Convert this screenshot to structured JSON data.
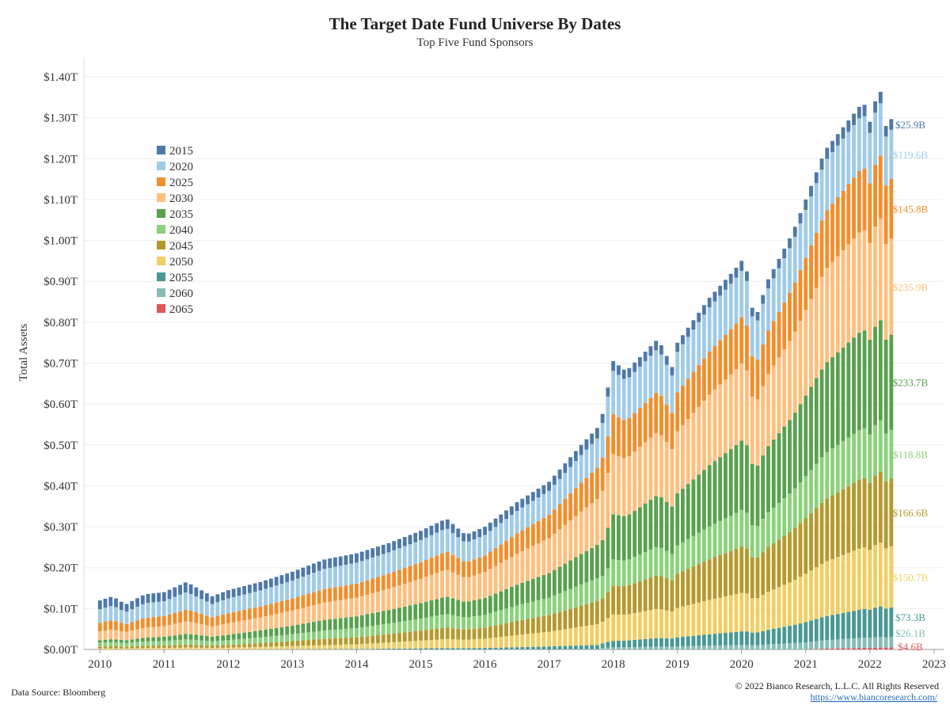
{
  "chart_data": {
    "type": "bar",
    "stacked": true,
    "title": "The Target Date Fund Universe By Dates",
    "subtitle": "Top Five Fund Sponsors",
    "ylabel": "Total Assets",
    "xlabel": "",
    "ylim": [
      0,
      1.4
    ],
    "y_ticks": [
      "$0.00T",
      "$0.10T",
      "$0.20T",
      "$0.30T",
      "$0.40T",
      "$0.50T",
      "$0.60T",
      "$0.70T",
      "$0.80T",
      "$0.90T",
      "$1.00T",
      "$1.10T",
      "$1.20T",
      "$1.30T",
      "$1.40T"
    ],
    "y_tick_values": [
      0,
      0.1,
      0.2,
      0.3,
      0.4,
      0.5,
      0.6,
      0.7,
      0.8,
      0.9,
      1.0,
      1.1,
      1.2,
      1.3,
      1.4
    ],
    "x_ticks": [
      "2010",
      "2011",
      "2012",
      "2013",
      "2014",
      "2015",
      "2016",
      "2017",
      "2018",
      "2019",
      "2020",
      "2021",
      "2022",
      "2023"
    ],
    "x_range_years": [
      2009.75,
      2023.15
    ],
    "period": {
      "start": "2010-01",
      "end": "2022-05",
      "frequency": "monthly"
    },
    "legend_position": "top-left",
    "series_order_bottom_to_top": [
      "2065",
      "2060",
      "2055",
      "2050",
      "2045",
      "2040",
      "2035",
      "2030",
      "2025",
      "2020",
      "2015"
    ],
    "series": [
      {
        "name": "2015",
        "color": "#4e79a7",
        "end_label": "$25.9B",
        "anchor_values": [
          [
            2010.0,
            0.018
          ],
          [
            2012.0,
            0.018
          ],
          [
            2014.0,
            0.02
          ],
          [
            2016.0,
            0.022
          ],
          [
            2017.8,
            0.025
          ],
          [
            2020.0,
            0.026
          ],
          [
            2022.4,
            0.026
          ]
        ]
      },
      {
        "name": "2020",
        "color": "#a0cbe8",
        "end_label": "$119.6B",
        "anchor_values": [
          [
            2010.0,
            0.028
          ],
          [
            2012.0,
            0.032
          ],
          [
            2014.0,
            0.045
          ],
          [
            2016.0,
            0.055
          ],
          [
            2017.8,
            0.07
          ],
          [
            2017.85,
            0.11
          ],
          [
            2020.0,
            0.12
          ],
          [
            2022.4,
            0.12
          ]
        ]
      },
      {
        "name": "2025",
        "color": "#f28e2b",
        "end_label": "$145.8B",
        "anchor_values": [
          [
            2010.0,
            0.018
          ],
          [
            2012.0,
            0.022
          ],
          [
            2014.0,
            0.03
          ],
          [
            2016.0,
            0.045
          ],
          [
            2017.8,
            0.075
          ],
          [
            2017.85,
            0.1
          ],
          [
            2020.0,
            0.12
          ],
          [
            2022.4,
            0.146
          ]
        ]
      },
      {
        "name": "2030",
        "color": "#ffbe7d",
        "end_label": "$235.9B",
        "anchor_values": [
          [
            2010.0,
            0.018
          ],
          [
            2012.0,
            0.025
          ],
          [
            2014.0,
            0.04
          ],
          [
            2016.0,
            0.07
          ],
          [
            2017.8,
            0.11
          ],
          [
            2017.85,
            0.15
          ],
          [
            2020.0,
            0.2
          ],
          [
            2022.4,
            0.236
          ]
        ]
      },
      {
        "name": "2035",
        "color": "#59a14f",
        "end_label": "$233.7B",
        "anchor_values": [
          [
            2010.0,
            0.005
          ],
          [
            2012.0,
            0.012
          ],
          [
            2014.0,
            0.025
          ],
          [
            2016.0,
            0.045
          ],
          [
            2017.8,
            0.08
          ],
          [
            2017.85,
            0.11
          ],
          [
            2020.0,
            0.18
          ],
          [
            2022.4,
            0.234
          ]
        ]
      },
      {
        "name": "2040",
        "color": "#8cd17d",
        "end_label": "$118.8B",
        "anchor_values": [
          [
            2010.0,
            0.008
          ],
          [
            2012.0,
            0.01
          ],
          [
            2014.0,
            0.02
          ],
          [
            2016.0,
            0.035
          ],
          [
            2017.8,
            0.055
          ],
          [
            2017.85,
            0.065
          ],
          [
            2020.0,
            0.095
          ],
          [
            2022.4,
            0.119
          ]
        ]
      },
      {
        "name": "2045",
        "color": "#b6992d",
        "end_label": "$166.6B",
        "anchor_values": [
          [
            2010.0,
            0.004
          ],
          [
            2012.0,
            0.006
          ],
          [
            2014.0,
            0.015
          ],
          [
            2016.0,
            0.03
          ],
          [
            2017.8,
            0.055
          ],
          [
            2017.85,
            0.07
          ],
          [
            2020.0,
            0.12
          ],
          [
            2022.4,
            0.167
          ]
        ]
      },
      {
        "name": "2050",
        "color": "#f1ce63",
        "end_label": "$150.7B",
        "anchor_values": [
          [
            2010.0,
            0.002
          ],
          [
            2012.0,
            0.004
          ],
          [
            2014.0,
            0.01
          ],
          [
            2016.0,
            0.025
          ],
          [
            2017.8,
            0.05
          ],
          [
            2017.85,
            0.065
          ],
          [
            2020.0,
            0.1
          ],
          [
            2022.4,
            0.151
          ]
        ]
      },
      {
        "name": "2055",
        "color": "#499894",
        "end_label": "$73.3B",
        "anchor_values": [
          [
            2010.0,
            0.0
          ],
          [
            2012.0,
            0.0
          ],
          [
            2014.0,
            0.001
          ],
          [
            2016.0,
            0.004
          ],
          [
            2017.8,
            0.01
          ],
          [
            2017.85,
            0.015
          ],
          [
            2020.0,
            0.035
          ],
          [
            2022.4,
            0.073
          ]
        ]
      },
      {
        "name": "2060",
        "color": "#86bcb6",
        "end_label": "$26.1B",
        "anchor_values": [
          [
            2010.0,
            0.0
          ],
          [
            2014.0,
            0.0
          ],
          [
            2016.0,
            0.0
          ],
          [
            2017.8,
            0.001
          ],
          [
            2017.85,
            0.005
          ],
          [
            2020.0,
            0.012
          ],
          [
            2022.4,
            0.026
          ]
        ]
      },
      {
        "name": "2065",
        "color": "#e15759",
        "end_label": "$4.6B",
        "anchor_values": [
          [
            2010.0,
            0.0
          ],
          [
            2020.0,
            0.0
          ],
          [
            2021.0,
            0.0
          ],
          [
            2021.3,
            0.002
          ],
          [
            2022.4,
            0.005
          ]
        ]
      }
    ],
    "total_anchors": [
      [
        2010.0,
        0.12
      ],
      [
        2010.2,
        0.13
      ],
      [
        2010.4,
        0.11
      ],
      [
        2010.7,
        0.135
      ],
      [
        2011.0,
        0.14
      ],
      [
        2011.35,
        0.165
      ],
      [
        2011.75,
        0.13
      ],
      [
        2012.0,
        0.145
      ],
      [
        2012.5,
        0.165
      ],
      [
        2013.0,
        0.19
      ],
      [
        2013.5,
        0.22
      ],
      [
        2014.0,
        0.235
      ],
      [
        2014.5,
        0.26
      ],
      [
        2015.0,
        0.29
      ],
      [
        2015.4,
        0.32
      ],
      [
        2015.7,
        0.28
      ],
      [
        2016.0,
        0.3
      ],
      [
        2016.5,
        0.36
      ],
      [
        2017.0,
        0.41
      ],
      [
        2017.5,
        0.5
      ],
      [
        2017.8,
        0.55
      ],
      [
        2018.0,
        0.705
      ],
      [
        2018.2,
        0.68
      ],
      [
        2018.7,
        0.76
      ],
      [
        2018.95,
        0.68
      ],
      [
        2019.0,
        0.75
      ],
      [
        2019.5,
        0.86
      ],
      [
        2019.9,
        0.93
      ],
      [
        2020.05,
        0.96
      ],
      [
        2020.2,
        0.8
      ],
      [
        2020.4,
        0.9
      ],
      [
        2020.8,
        1.02
      ],
      [
        2021.0,
        1.1
      ],
      [
        2021.3,
        1.22
      ],
      [
        2021.7,
        1.3
      ],
      [
        2021.9,
        1.34
      ],
      [
        2022.0,
        1.29
      ],
      [
        2022.15,
        1.38
      ],
      [
        2022.25,
        1.28
      ],
      [
        2022.35,
        1.3
      ],
      [
        2022.4,
        1.3
      ]
    ]
  },
  "footer": {
    "source": "Data Source: Bloomberg",
    "copyright": "© 2022 Bianco Research, L.L.C. All Rights Reserved",
    "url": "https://www.biancoresearch.com/"
  }
}
